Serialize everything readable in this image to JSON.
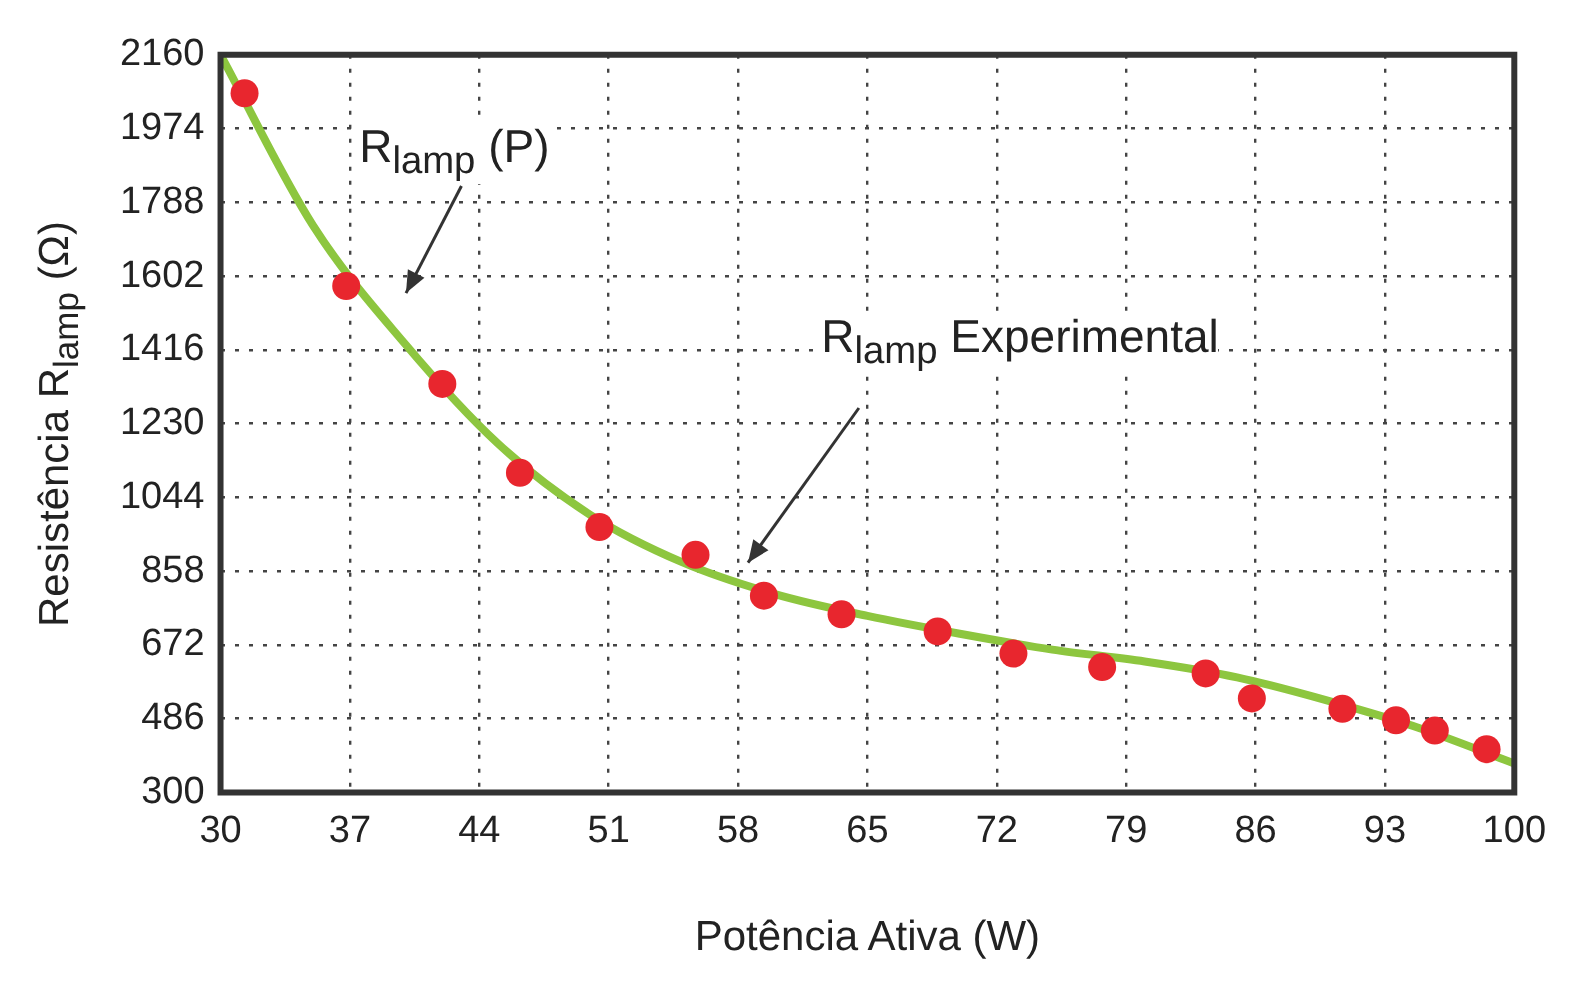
{
  "chart_data": {
    "type": "scatter",
    "xlabel": "Potência Ativa (W)",
    "ylabel": "Resistência R$_{lamp}$ (Ω)",
    "annotations": [
      "R$_{lamp}$ (P)",
      "R$_{lamp}$ Experimental"
    ],
    "xlim": [
      30,
      100
    ],
    "xticks": [
      30,
      37,
      44,
      51,
      58,
      65,
      72,
      79,
      86,
      93,
      100
    ],
    "ylim": [
      300,
      2160
    ],
    "yticks": [
      300,
      486,
      672,
      858,
      1044,
      1230,
      1416,
      1602,
      1788,
      1974,
      2160
    ],
    "grid": true,
    "series": [
      {
        "type": "line",
        "color": "#8dc63f",
        "marker": "none",
        "line_style": "solid",
        "x": [
          30,
          35,
          40,
          45,
          50,
          55,
          60,
          65,
          70,
          75,
          80,
          85,
          90,
          95,
          100
        ],
        "values": [
          2160,
          1730,
          1430,
          1180,
          1000,
          880,
          800,
          745,
          700,
          660,
          630,
          590,
          530,
          460,
          373
        ]
      },
      {
        "color": "#e8262e",
        "marker": "circle",
        "x": [
          31.3,
          36.8,
          42.0,
          46.2,
          50.5,
          55.7,
          59.4,
          63.6,
          68.8,
          72.9,
          77.7,
          83.3,
          85.8,
          90.7,
          93.6,
          95.7,
          98.5
        ],
        "values": [
          2063,
          1577,
          1330,
          1106,
          969,
          899,
          796,
          749,
          706,
          650,
          616,
          600,
          537,
          511,
          482,
          456,
          409
        ]
      }
    ]
  }
}
